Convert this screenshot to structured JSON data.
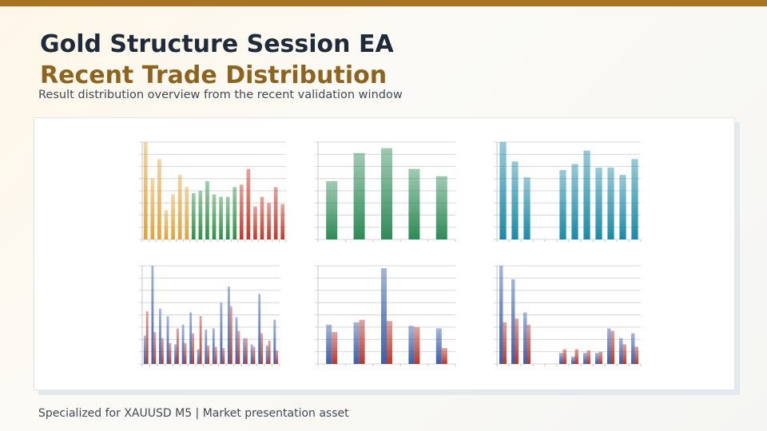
{
  "header": {
    "title": "Gold Structure Session EA",
    "subtitle": "Recent Trade Distribution",
    "description": "Result distribution overview from the recent validation window"
  },
  "footer": "Specialized for XAUUSD M5 | Market presentation asset",
  "chart_data": [
    {
      "type": "bar",
      "ylim": [
        0,
        8
      ],
      "yticks": [
        0,
        1,
        2,
        3,
        4,
        5,
        6,
        7,
        8
      ],
      "grid": true,
      "values": [
        8,
        5,
        6.6,
        2.4,
        3.7,
        5.3,
        4.3,
        3.8,
        4,
        4.8,
        3.7,
        3.5,
        3.5,
        4.3,
        4.5,
        5.8,
        2.7,
        3.5,
        3,
        4.3,
        2.9
      ],
      "colors": [
        "#e0a33a",
        "#e0a33a",
        "#e0a33a",
        "#e0a33a",
        "#e0a33a",
        "#e0a33a",
        "#e0a33a",
        "#2f8f45",
        "#2f8f45",
        "#2f8f45",
        "#2f8f45",
        "#2f8f45",
        "#2f8f45",
        "#2f8f45",
        "#c0392b",
        "#c0392b",
        "#c0392b",
        "#c0392b",
        "#c0392b",
        "#c0392b",
        "#c0392b"
      ]
    },
    {
      "type": "bar",
      "ylim": [
        0,
        8
      ],
      "yticks": [
        0,
        1,
        2,
        3,
        4,
        5,
        6,
        7,
        8
      ],
      "grid": true,
      "values": [
        4.8,
        7.1,
        7.5,
        5.8,
        5.2
      ],
      "color": "#2e8b57"
    },
    {
      "type": "bar",
      "ylim": [
        0,
        8
      ],
      "yticks": [
        0,
        1,
        2,
        3,
        4,
        5,
        6,
        7,
        8
      ],
      "grid": true,
      "values": [
        8,
        6.4,
        5.1,
        null,
        null,
        5.7,
        6.2,
        7.3,
        5.9,
        5.9,
        5.3,
        6.6
      ],
      "color": "#1a8aa8"
    },
    {
      "type": "grouped_bar",
      "ylim": [
        0,
        8
      ],
      "yticks": [
        0,
        1,
        2,
        3,
        4,
        5,
        6,
        7,
        8
      ],
      "grid": true,
      "series": [
        {
          "color": "#3a5ea8",
          "values": [
            2.3,
            8,
            4.5,
            3.9,
            1.6,
            3.2,
            4.2,
            1.2,
            2.8,
            2.9,
            5,
            6.3,
            3.8,
            2.1,
            1.6,
            5.7,
            1.5,
            3.6
          ]
        },
        {
          "color": "#b8382c",
          "values": [
            4.3,
            2.6,
            2.1,
            1.7,
            2.9,
            1.7,
            2.5,
            3.9,
            1.5,
            1.4,
            1.3,
            4.7,
            2.7,
            2.1,
            1.4,
            2.5,
            1.9,
            1.1
          ]
        }
      ]
    },
    {
      "type": "grouped_bar",
      "ylim": [
        0,
        8
      ],
      "yticks": [
        0,
        1,
        2,
        3,
        4,
        5,
        6,
        7,
        8
      ],
      "grid": true,
      "series": [
        {
          "color": "#3a5ea8",
          "values": [
            3.2,
            3.4,
            7.8,
            3.1,
            2.9
          ]
        },
        {
          "color": "#b8382c",
          "values": [
            2.6,
            3.6,
            3.5,
            3.0,
            1.3
          ]
        }
      ]
    },
    {
      "type": "grouped_bar",
      "ylim": [
        0,
        8
      ],
      "yticks": [
        0,
        1,
        2,
        3,
        4,
        5,
        6,
        7,
        8
      ],
      "grid": true,
      "series": [
        {
          "color": "#3a5ea8",
          "values": [
            8,
            6.9,
            4.2,
            null,
            null,
            0.9,
            0.6,
            0.9,
            0.9,
            2.9,
            2.1,
            2.5
          ]
        },
        {
          "color": "#b8382c",
          "values": [
            3.4,
            3.7,
            3.2,
            null,
            null,
            1.2,
            1.2,
            1.1,
            1.0,
            2.7,
            1.6,
            1.4
          ]
        }
      ]
    }
  ]
}
